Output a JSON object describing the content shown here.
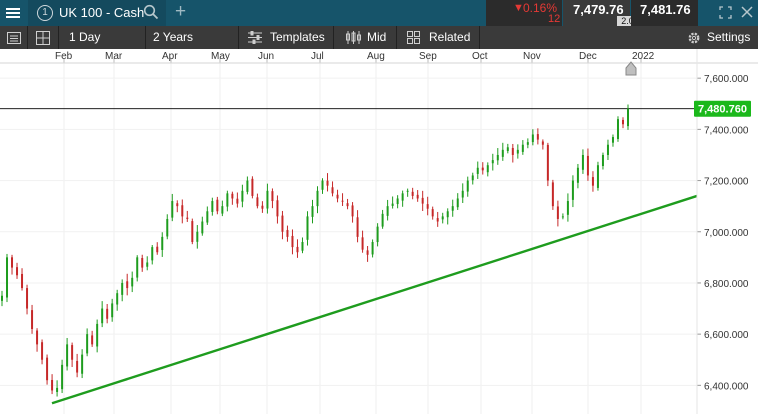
{
  "tab": {
    "index": "1",
    "instrument": "UK 100 - Cash",
    "add": "+"
  },
  "quote": {
    "change_pct": "0.16%",
    "change_points": "12",
    "sell": "7,479.76",
    "spread": "2.00",
    "buy": "7,481.76"
  },
  "toolbar": {
    "interval": "1 Day",
    "range": "2 Years",
    "templates": "Templates",
    "price_type": "Mid",
    "related": "Related",
    "settings": "Settings"
  },
  "chart_data": {
    "type": "candlestick",
    "instrument": "UK 100 - Cash",
    "x_tick_labels": [
      "Feb",
      "Mar",
      "Apr",
      "May",
      "Jun",
      "Jul",
      "Aug",
      "Sep",
      "Oct",
      "Nov",
      "Dec",
      "2022"
    ],
    "y_tick_labels": [
      "7,600.000",
      "7,400.000",
      "7,200.000",
      "7,000.000",
      "6,800.000",
      "6,600.000",
      "6,400.000"
    ],
    "y_ticks": [
      7600,
      7400,
      7200,
      7000,
      6800,
      6600,
      6400
    ],
    "ylim": [
      6288,
      7714
    ],
    "current_price": 7480.76,
    "current_price_label": "7,480.760",
    "trendline": {
      "start": [
        "Feb",
        6330
      ],
      "end": [
        "Jan 2022",
        7140
      ],
      "color": "#1e9c1e"
    },
    "series": [
      {
        "values": [
          6750,
          6900,
          6860,
          6830,
          6780,
          6700,
          6620,
          6560,
          6500,
          6420,
          6380,
          6390,
          6480,
          6560,
          6500,
          6450,
          6520,
          6600,
          6560,
          6640,
          6700,
          6660,
          6720,
          6760,
          6800,
          6780,
          6820,
          6900,
          6860,
          6880,
          6940,
          6920,
          6980,
          7050,
          7120,
          7100,
          7060,
          7050,
          6960,
          7000,
          7040,
          7080,
          7120,
          7080,
          7100,
          7150,
          7130,
          7110,
          7160,
          7200,
          7140,
          7100,
          7090,
          7160,
          7120,
          7060,
          7000,
          6980,
          6940,
          6920,
          6960,
          7060,
          7100,
          7160,
          7200,
          7180,
          7150,
          7130,
          7120,
          7100,
          7060,
          6980,
          6930,
          6910,
          6960,
          7020,
          7070,
          7100,
          7110,
          7130,
          7150,
          7160,
          7140,
          7130,
          7110,
          7090,
          7060,
          7040,
          7060,
          7080,
          7100,
          7130,
          7160,
          7200,
          7220,
          7250,
          7240,
          7260,
          7280,
          7300,
          7320,
          7330,
          7300,
          7320,
          7340,
          7350,
          7380,
          7360,
          7340,
          7200,
          7100,
          7050,
          7060,
          7120,
          7200,
          7250,
          7300,
          7220,
          7180,
          7260,
          7300,
          7340,
          7370,
          7440,
          7420,
          7480
        ]
      }
    ],
    "colors": {
      "up": "#1e9c1e",
      "down": "#c62828",
      "price_label_bg": "#1bb81b"
    }
  }
}
